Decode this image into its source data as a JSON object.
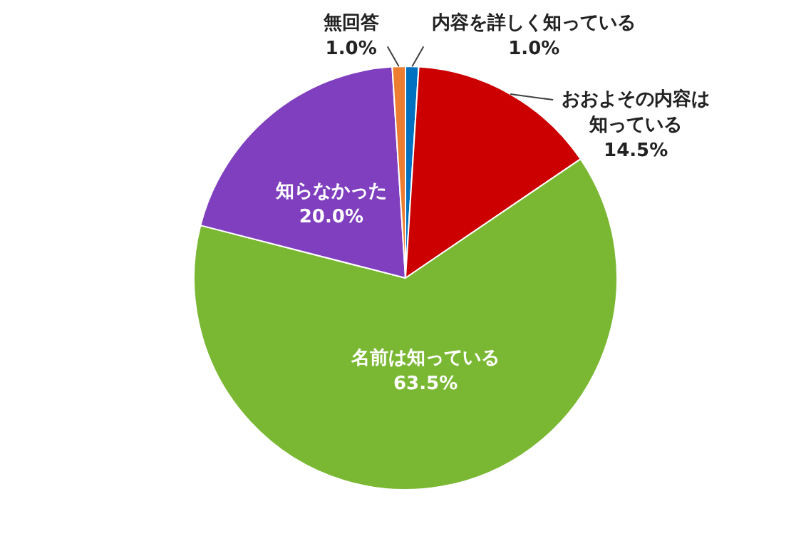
{
  "chart_data": {
    "type": "pie",
    "categories": [
      "内容を詳しく知っている",
      "おおよその内容は知っている",
      "名前は知っている",
      "知らなかった",
      "無回答"
    ],
    "values": [
      1.0,
      14.5,
      63.5,
      20.0,
      1.0
    ],
    "value_labels": [
      "1.0%",
      "14.5%",
      "63.5%",
      "20.0%",
      "1.0%"
    ],
    "colors": [
      "#0070c0",
      "#cc0000",
      "#7ab833",
      "#7f3fbf",
      "#ed7d31"
    ],
    "legend": false
  }
}
